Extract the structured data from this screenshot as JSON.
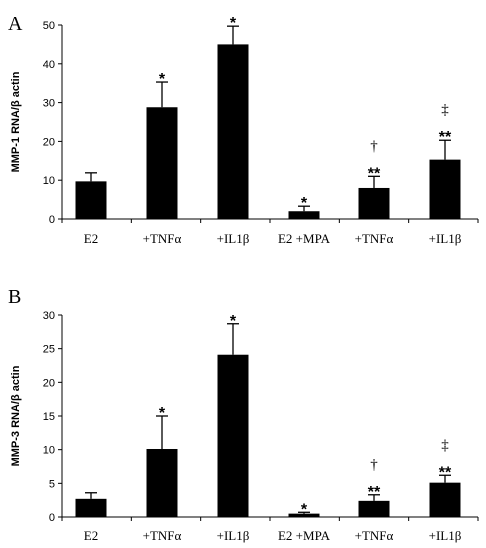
{
  "chart_data": [
    {
      "type": "bar",
      "panel_label": "A",
      "ylabel": "MMP-1 RNA/β actin",
      "ylim": [
        0,
        50
      ],
      "yticks": [
        0,
        10,
        20,
        30,
        40,
        50
      ],
      "categories": [
        "E2",
        "+TNFα",
        "+IL1β",
        "E2 +MPA",
        "+TNFα",
        "+IL1β"
      ],
      "values": [
        9.7,
        28.8,
        45.0,
        2.0,
        8.0,
        15.3
      ],
      "errors": [
        2.2,
        6.5,
        4.7,
        1.3,
        3.0,
        5.0
      ],
      "annotations": [
        [],
        [
          "*"
        ],
        [
          "*"
        ],
        [
          "*"
        ],
        [
          "**",
          "†"
        ],
        [
          "**",
          "‡"
        ]
      ]
    },
    {
      "type": "bar",
      "panel_label": "B",
      "ylabel": "MMP-3 RNA/β actin",
      "ylim": [
        0,
        30
      ],
      "yticks": [
        0,
        5,
        10,
        15,
        20,
        25,
        30
      ],
      "categories": [
        "E2",
        "+TNFα",
        "+IL1β",
        "E2 +MPA",
        "+TNFα",
        "+IL1β"
      ],
      "values": [
        2.7,
        10.1,
        24.1,
        0.5,
        2.4,
        5.1
      ],
      "errors": [
        0.9,
        4.9,
        4.6,
        0.2,
        0.9,
        1.1
      ],
      "annotations": [
        [],
        [
          "*"
        ],
        [
          "*"
        ],
        [
          "*"
        ],
        [
          "**",
          "†"
        ],
        [
          "**",
          "‡"
        ]
      ]
    }
  ]
}
